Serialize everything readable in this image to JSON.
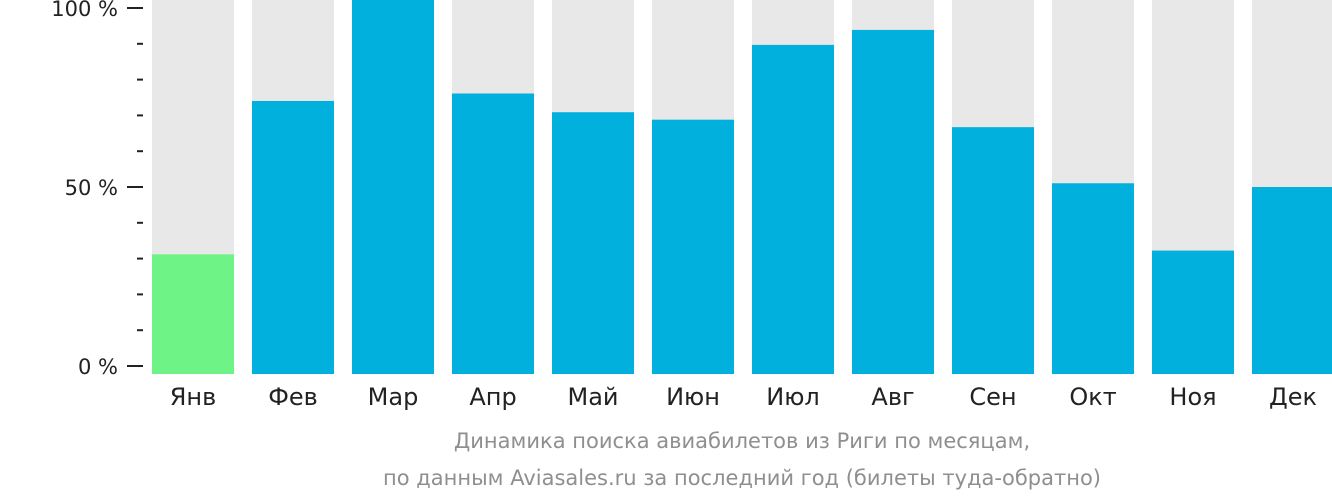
{
  "chart_data": {
    "type": "bar",
    "categories": [
      "Янв",
      "Фев",
      "Мар",
      "Апр",
      "Май",
      "Июн",
      "Июл",
      "Авг",
      "Сен",
      "Окт",
      "Ноя",
      "Дек"
    ],
    "values": [
      32,
      73,
      100,
      75,
      70,
      68,
      88,
      92,
      66,
      51,
      33,
      50
    ],
    "ylim": [
      0,
      100
    ],
    "yticks": [
      {
        "value": 100,
        "label": "100 %"
      },
      {
        "value": 50,
        "label": "50 %"
      },
      {
        "value": 0,
        "label": "0 %"
      }
    ],
    "minor_tick_step": 10,
    "highlight_index": 0,
    "colors": {
      "bar": "#02b0dd",
      "highlight": "#6ef386",
      "track": "#e8e8e8",
      "axis": "#222222"
    },
    "title": "Динамика поиска авиабилетов из Риги по месяцам,",
    "subtitle": "по данным Aviasales.ru за последний год (билеты туда-обратно)"
  }
}
